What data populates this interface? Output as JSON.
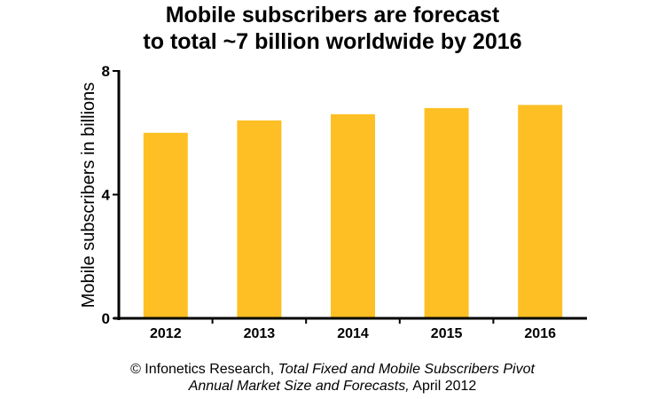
{
  "chart_data": {
    "type": "bar",
    "title_line1": "Mobile subscribers are forecast",
    "title_line2": "to total ~7 billion worldwide by 2016",
    "xlabel": "",
    "ylabel": "Mobile subscribers in billions",
    "categories": [
      "2012",
      "2013",
      "2014",
      "2015",
      "2016"
    ],
    "values": [
      6.0,
      6.4,
      6.6,
      6.8,
      6.9
    ],
    "ylim": [
      0,
      8
    ],
    "yticks": [
      "0",
      "4",
      "8"
    ],
    "grid": false,
    "bar_color": "#FDBF23"
  },
  "source": {
    "prefix": "© Infonetics Research, ",
    "title_italic_1": "Total Fixed and Mobile Subscribers Pivot",
    "title_italic_2": "Annual Market Size and Forecasts,",
    "suffix": " April 2012"
  }
}
